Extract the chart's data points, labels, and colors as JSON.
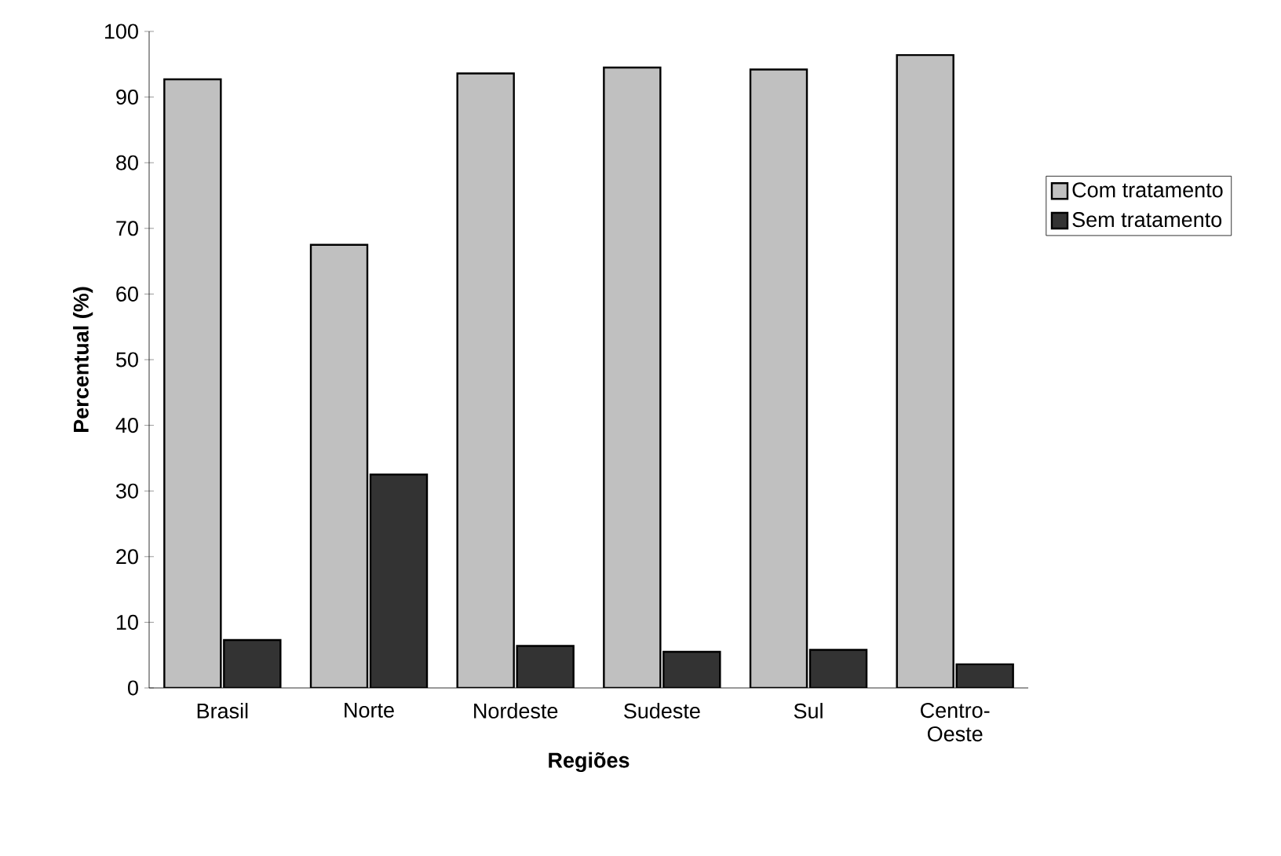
{
  "chart_data": {
    "type": "bar",
    "xlabel": "Regiões",
    "ylabel": "Percentual (%)",
    "categories": [
      "Brasil",
      "Norte",
      "Nordeste",
      "Sudeste",
      "Sul",
      "Centro-Oeste"
    ],
    "series": [
      {
        "name": "Com tratamento",
        "color": "#c0c0c0",
        "values": [
          92.7,
          67.5,
          93.6,
          94.5,
          94.2,
          96.4
        ]
      },
      {
        "name": "Sem tratamento",
        "color": "#333333",
        "values": [
          7.3,
          32.5,
          6.4,
          5.5,
          5.8,
          3.6
        ]
      }
    ],
    "ylim": [
      0,
      100
    ],
    "yticks": [
      0,
      10,
      20,
      30,
      40,
      50,
      60,
      70,
      80,
      90,
      100
    ],
    "grid": false,
    "legend": "right"
  }
}
